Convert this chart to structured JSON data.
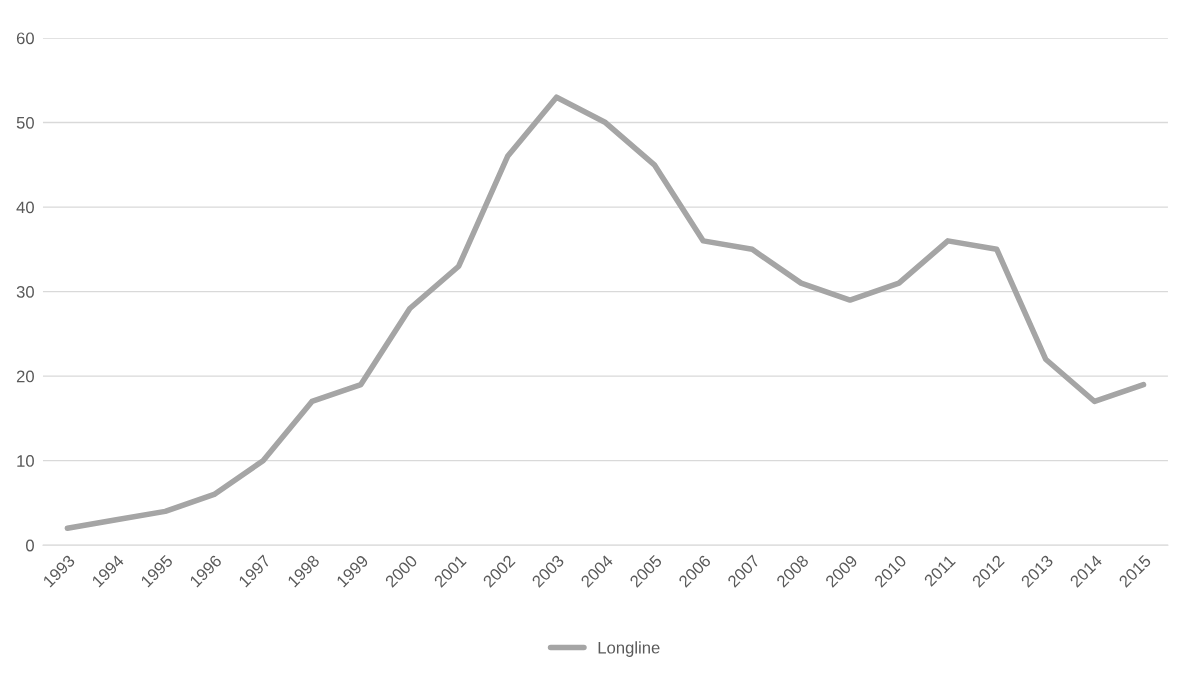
{
  "chart_data": {
    "type": "line",
    "categories": [
      "1993",
      "1994",
      "1995",
      "1996",
      "1997",
      "1998",
      "1999",
      "2000",
      "2001",
      "2002",
      "2003",
      "2004",
      "2005",
      "2006",
      "2007",
      "2008",
      "2009",
      "2010",
      "2011",
      "2012",
      "2013",
      "2014",
      "2015"
    ],
    "series": [
      {
        "name": "Longline",
        "color": "#a5a5a5",
        "values": [
          2,
          3,
          4,
          6,
          10,
          17,
          19,
          28,
          33,
          46,
          53,
          50,
          45,
          36,
          35,
          31,
          29,
          31,
          36,
          35,
          22,
          17,
          19
        ]
      }
    ],
    "ylim": [
      0,
      60
    ],
    "yticks": [
      0,
      10,
      20,
      30,
      40,
      50,
      60
    ],
    "grid": "y",
    "legend": "bottom",
    "marker": "none",
    "line_style": "solid"
  }
}
